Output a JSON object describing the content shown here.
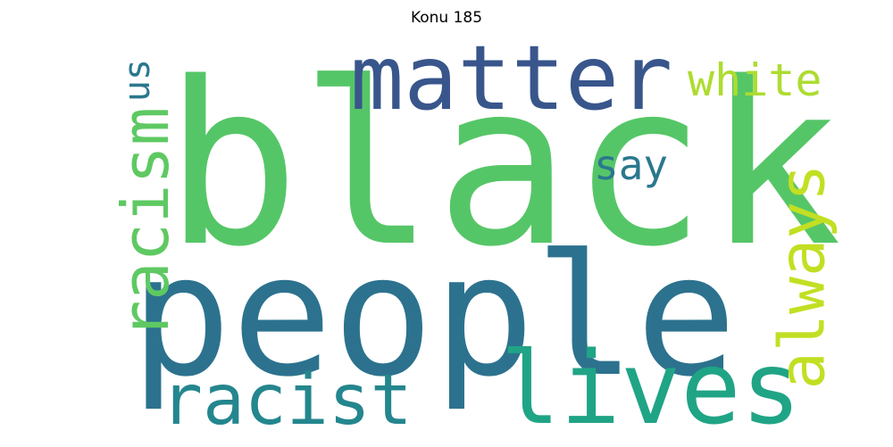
{
  "title": "Konu 185",
  "words": [
    {
      "text": "black",
      "color": "#55c667"
    },
    {
      "text": "people",
      "color": "#2c728e"
    },
    {
      "text": "matter",
      "color": "#39568c"
    },
    {
      "text": "lives",
      "color": "#20a486"
    },
    {
      "text": "racism",
      "color": "#5ec962"
    },
    {
      "text": "racist",
      "color": "#24868e"
    },
    {
      "text": "always",
      "color": "#c2df23"
    },
    {
      "text": "white",
      "color": "#addc30"
    },
    {
      "text": "say",
      "color": "#2a788e"
    },
    {
      "text": "us",
      "color": "#2a788e"
    }
  ]
}
